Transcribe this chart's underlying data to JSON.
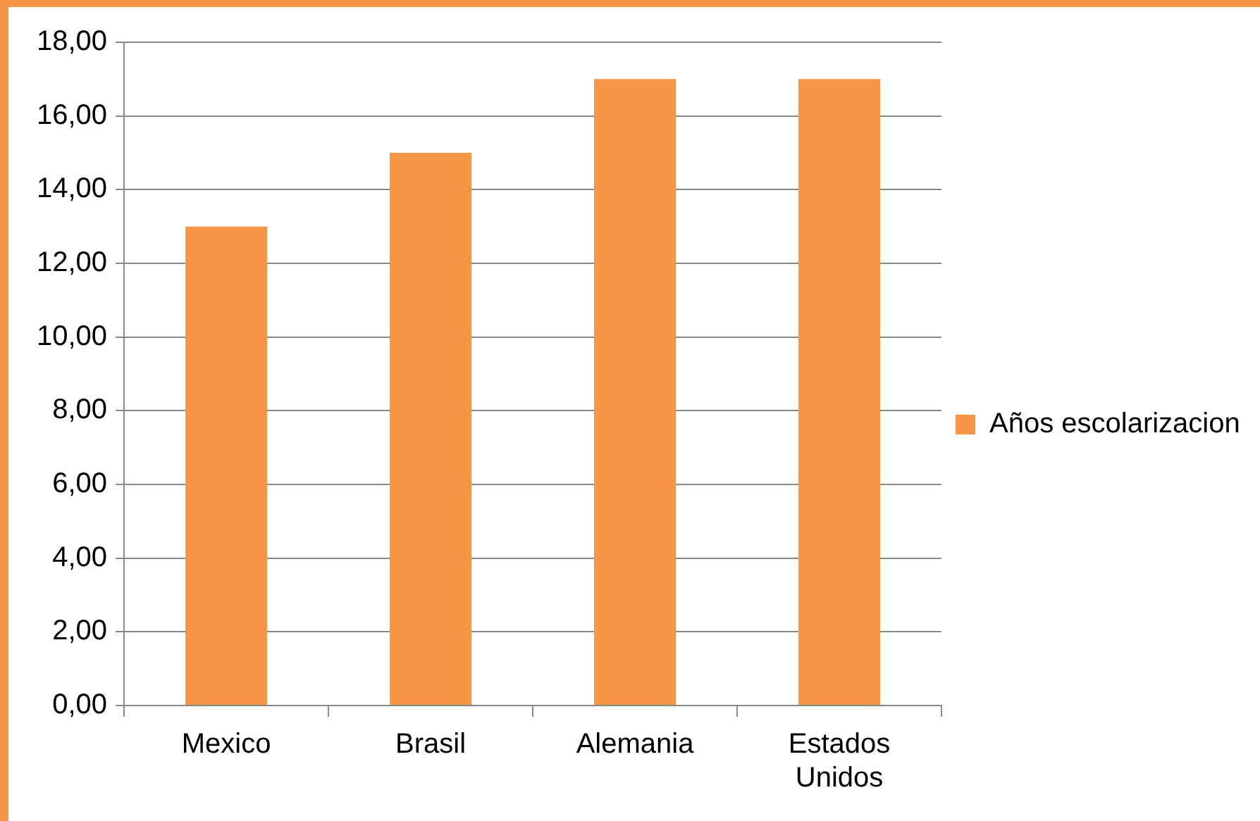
{
  "chart_data": {
    "type": "bar",
    "categories": [
      "Mexico",
      "Brasil",
      "Alemania",
      "Estados Unidos"
    ],
    "series": [
      {
        "name": "Años escolarizacion",
        "color": "#f79646",
        "values": [
          13,
          15,
          17,
          17
        ]
      }
    ],
    "ylim": [
      0,
      18
    ],
    "yticks": [
      {
        "value": 0,
        "label": "0,00"
      },
      {
        "value": 2,
        "label": "2,00"
      },
      {
        "value": 4,
        "label": "4,00"
      },
      {
        "value": 6,
        "label": "6,00"
      },
      {
        "value": 8,
        "label": "8,00"
      },
      {
        "value": 10,
        "label": "10,00"
      },
      {
        "value": 12,
        "label": "12,00"
      },
      {
        "value": 14,
        "label": "14,00"
      },
      {
        "value": 16,
        "label": "16,00"
      },
      {
        "value": 18,
        "label": "18,00"
      }
    ],
    "grid": "y",
    "legend": "right"
  }
}
